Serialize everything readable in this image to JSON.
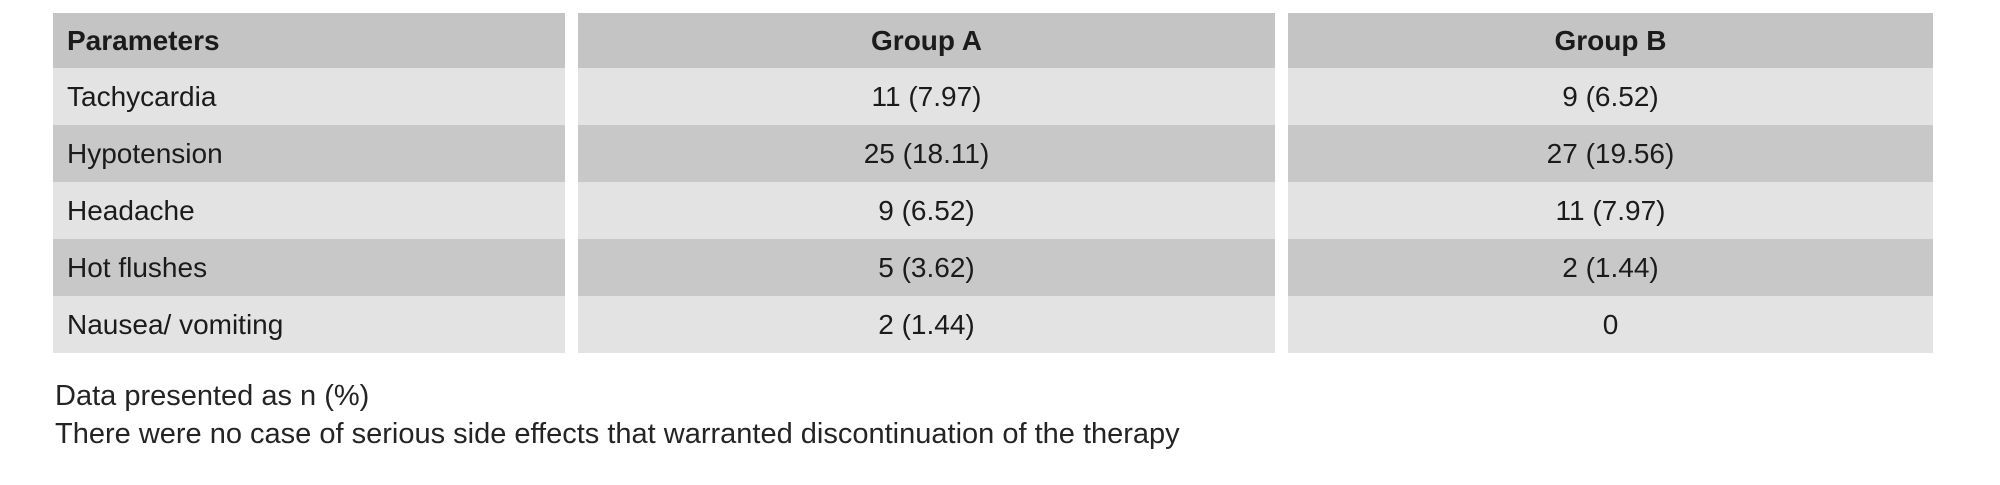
{
  "table": {
    "headers": {
      "parameters": "Parameters",
      "group_a": "Group A",
      "group_b": "Group B"
    },
    "rows": [
      {
        "parameter": "Tachycardia",
        "group_a": "11 (7.97)",
        "group_b": "9 (6.52)"
      },
      {
        "parameter": "Hypotension",
        "group_a": "25 (18.11)",
        "group_b": "27 (19.56)"
      },
      {
        "parameter": "Headache",
        "group_a": "9 (6.52)",
        "group_b": "11 (7.97)"
      },
      {
        "parameter": "Hot flushes",
        "group_a": "5 (3.62)",
        "group_b": "2 (1.44)"
      },
      {
        "parameter": "Nausea/ vomiting",
        "group_a": "2 (1.44)",
        "group_b": "0"
      }
    ]
  },
  "footnotes": [
    "Data presented as n (%)",
    "There were no case of serious side effects that warranted discontinuation of the therapy"
  ],
  "colors": {
    "header_bg": "#c4c4c4",
    "row_dark_bg": "#c8c8c8",
    "row_light_bg": "#e3e3e4",
    "gutter": "#ffffff",
    "text": "#1b1b1b"
  }
}
